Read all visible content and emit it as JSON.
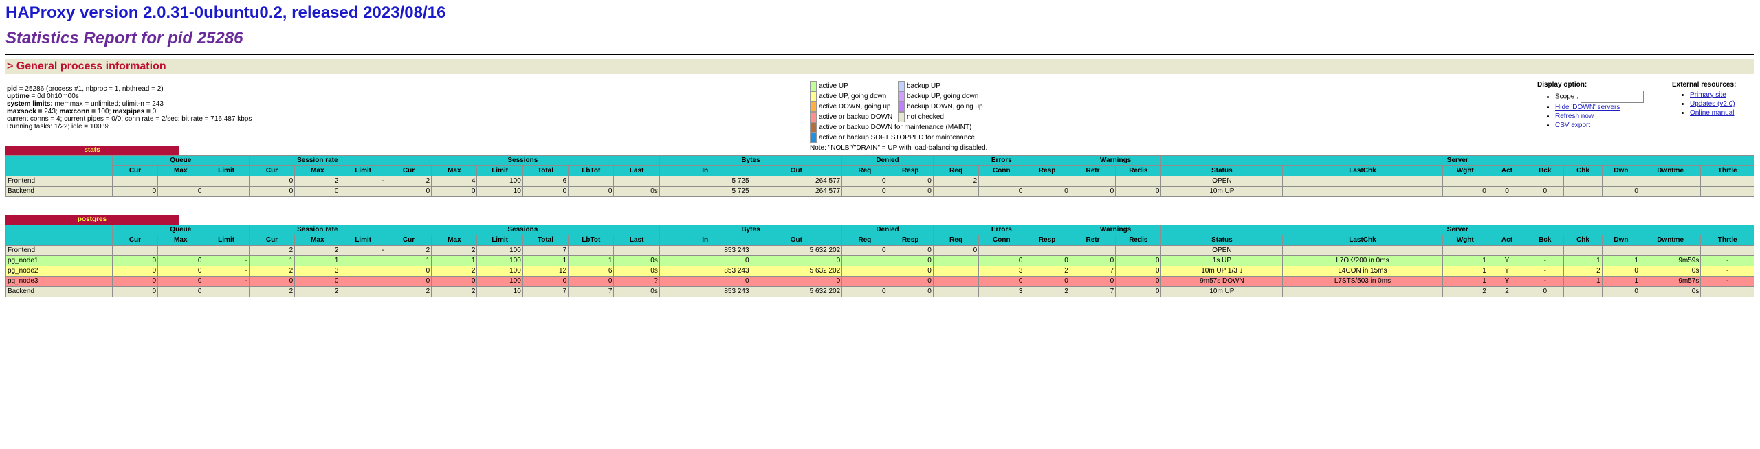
{
  "header": {
    "title": "HAProxy version 2.0.31-0ubuntu0.2, released 2023/08/16",
    "subtitle": "Statistics Report for pid 25286"
  },
  "general": {
    "section_title": "> General process information",
    "lines": [
      {
        "label": "pid = ",
        "value": "25286 (process #1, nbproc = 1, nbthread = 2)"
      },
      {
        "label": "uptime = ",
        "value": "0d 0h10m00s"
      },
      {
        "label": "system limits:",
        "value": " memmax = unlimited; ulimit-n = 243"
      },
      {
        "label": "maxsock = ",
        "value": "243; ",
        "label2": "maxconn = ",
        "value2": "100; ",
        "label3": "maxpipes = ",
        "value3": "0"
      },
      {
        "label": "",
        "value": "current conns = 4; current pipes = 0/0; conn rate = 2/sec; bit rate = 716.487 kbps"
      },
      {
        "label": "",
        "value": "Running tasks: 1/22; idle = 100 %"
      }
    ]
  },
  "legend": {
    "col1": [
      {
        "label": "active UP",
        "color": "#c0ff9a"
      },
      {
        "label": "active UP, going down",
        "color": "#ffff90"
      },
      {
        "label": "active DOWN, going up",
        "color": "#ffb040"
      },
      {
        "label": "active or backup DOWN",
        "color": "#ff9090"
      },
      {
        "label": "active or backup DOWN for maintenance (MAINT)",
        "color": "#b07040"
      },
      {
        "label": "active or backup SOFT STOPPED for maintenance",
        "color": "#2090e0"
      }
    ],
    "col2": [
      {
        "label": "backup UP",
        "color": "#c0d0ff"
      },
      {
        "label": "backup UP, going down",
        "color": "#d0a0ff"
      },
      {
        "label": "backup DOWN, going up",
        "color": "#c080ff"
      },
      {
        "label": "not checked",
        "color": "#e8e8d0"
      }
    ],
    "note": "Note: \"NOLB\"/\"DRAIN\" = UP with load-balancing disabled."
  },
  "display": {
    "title": "Display option:",
    "scope_label": "Scope : ",
    "links": [
      "Hide 'DOWN' servers",
      "Refresh now",
      "CSV export"
    ]
  },
  "external": {
    "title": "External resources:",
    "links": [
      "Primary site",
      "Updates (v2.0)",
      "Online manual"
    ]
  },
  "proxies": [
    {
      "name": "stats",
      "groups": [
        "Queue",
        "Session rate",
        "Sessions",
        "Bytes",
        "Denied",
        "Errors",
        "Warnings",
        "Server"
      ],
      "sub": [
        "Cur",
        "Max",
        "Limit",
        "Cur",
        "Max",
        "Limit",
        "Cur",
        "Max",
        "Limit",
        "Total",
        "LbTot",
        "Last",
        "In",
        "Out",
        "Req",
        "Resp",
        "Req",
        "Conn",
        "Resp",
        "Retr",
        "Redis",
        "Status",
        "LastChk",
        "Wght",
        "Act",
        "Bck",
        "Chk",
        "Dwn",
        "Dwntme",
        "Thrtle"
      ],
      "rows": [
        {
          "kind": "fe",
          "cells": [
            "Frontend",
            "",
            "",
            "",
            "0",
            "2",
            "-",
            "2",
            "4",
            "100",
            "6",
            "",
            "",
            "5 725",
            "264 577",
            "0",
            "0",
            "2",
            "",
            "",
            "",
            "",
            "OPEN",
            "",
            "",
            "",
            "",
            "",
            "",
            "",
            ""
          ]
        },
        {
          "kind": "be",
          "cells": [
            "Backend",
            "0",
            "0",
            "",
            "0",
            "0",
            "",
            "0",
            "0",
            "10",
            "0",
            "0",
            "0s",
            "5 725",
            "264 577",
            "0",
            "0",
            "",
            "0",
            "0",
            "0",
            "0",
            "10m UP",
            "",
            "0",
            "0",
            "0",
            "",
            "0",
            "",
            ""
          ]
        }
      ]
    },
    {
      "name": "postgres",
      "groups": [
        "Queue",
        "Session rate",
        "Sessions",
        "Bytes",
        "Denied",
        "Errors",
        "Warnings",
        "Server"
      ],
      "sub": [
        "Cur",
        "Max",
        "Limit",
        "Cur",
        "Max",
        "Limit",
        "Cur",
        "Max",
        "Limit",
        "Total",
        "LbTot",
        "Last",
        "In",
        "Out",
        "Req",
        "Resp",
        "Req",
        "Conn",
        "Resp",
        "Retr",
        "Redis",
        "Status",
        "LastChk",
        "Wght",
        "Act",
        "Bck",
        "Chk",
        "Dwn",
        "Dwntme",
        "Thrtle"
      ],
      "rows": [
        {
          "kind": "fe",
          "cells": [
            "Frontend",
            "",
            "",
            "",
            "2",
            "2",
            "-",
            "2",
            "2",
            "100",
            "7",
            "",
            "",
            "853 243",
            "5 632 202",
            "0",
            "0",
            "0",
            "",
            "",
            "",
            "",
            "OPEN",
            "",
            "",
            "",
            "",
            "",
            "",
            "",
            ""
          ]
        },
        {
          "kind": "up",
          "cells": [
            "pg_node1",
            "0",
            "0",
            "-",
            "1",
            "1",
            "",
            "1",
            "1",
            "100",
            "1",
            "1",
            "0s",
            "0",
            "0",
            "",
            "0",
            "",
            "0",
            "0",
            "0",
            "0",
            "1s UP",
            "L7OK/200 in 0ms",
            "1",
            "Y",
            "-",
            "1",
            "1",
            "9m59s",
            "-"
          ]
        },
        {
          "kind": "going",
          "cells": [
            "pg_node2",
            "0",
            "0",
            "-",
            "2",
            "3",
            "",
            "0",
            "2",
            "100",
            "12",
            "6",
            "0s",
            "853 243",
            "5 632 202",
            "",
            "0",
            "",
            "3",
            "2",
            "7",
            "0",
            "10m UP 1/3 ↓",
            "L4CON in 15ms",
            "1",
            "Y",
            "-",
            "2",
            "0",
            "0s",
            "-"
          ]
        },
        {
          "kind": "down",
          "cells": [
            "pg_node3",
            "0",
            "0",
            "-",
            "0",
            "0",
            "",
            "0",
            "0",
            "100",
            "0",
            "0",
            "?",
            "0",
            "0",
            "",
            "0",
            "",
            "0",
            "0",
            "0",
            "0",
            "9m57s DOWN",
            "L7STS/503 in 0ms",
            "1",
            "Y",
            "-",
            "1",
            "1",
            "9m57s",
            "-"
          ]
        },
        {
          "kind": "be",
          "cells": [
            "Backend",
            "0",
            "0",
            "",
            "2",
            "2",
            "",
            "2",
            "2",
            "10",
            "7",
            "7",
            "0s",
            "853 243",
            "5 632 202",
            "0",
            "0",
            "",
            "3",
            "2",
            "7",
            "0",
            "10m UP",
            "",
            "2",
            "2",
            "0",
            "",
            "0",
            "0s",
            ""
          ]
        }
      ]
    }
  ]
}
